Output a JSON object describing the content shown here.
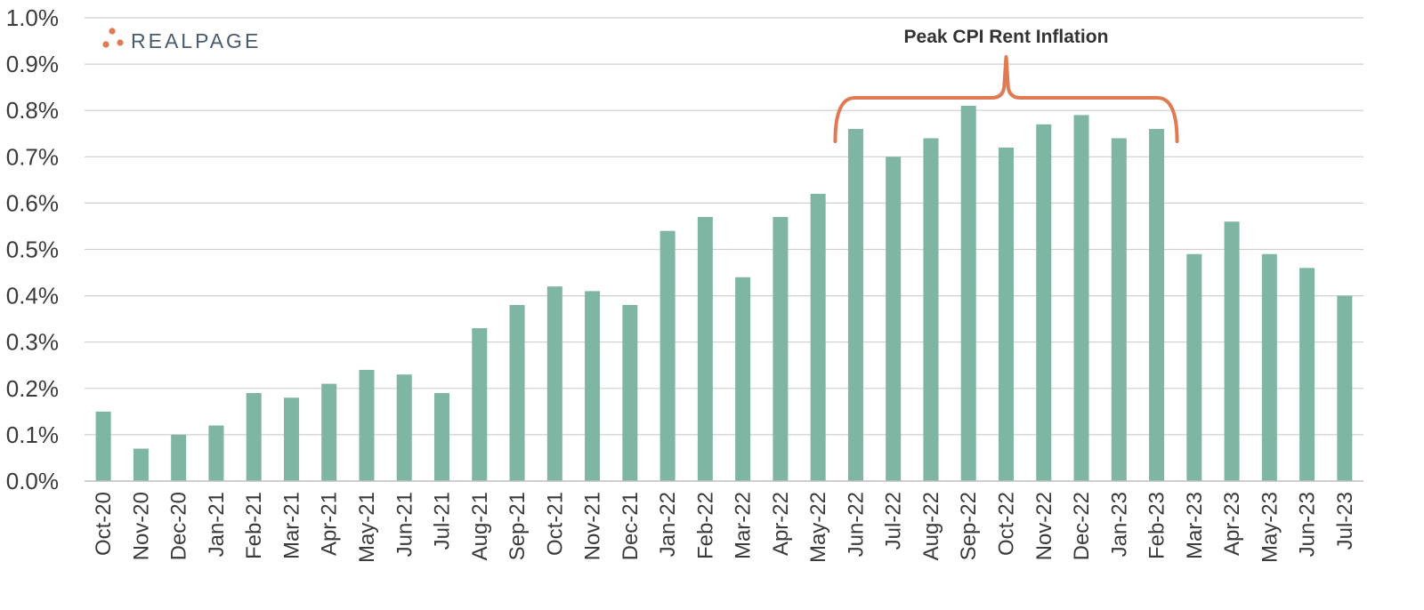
{
  "logo": {
    "text": "REALPAGE",
    "dot_color": "#e07a52",
    "text_color": "#4a5a6a"
  },
  "annotation": {
    "text": "Peak CPI Rent Inflation",
    "start_category": "Jun-22",
    "end_category": "Feb-23",
    "color": "#e07a52"
  },
  "chart_data": {
    "type": "bar",
    "title": "",
    "xlabel": "",
    "ylabel": "",
    "ylim": [
      0,
      1.0
    ],
    "y_unit": "%",
    "y_ticks": [
      "0.0%",
      "0.1%",
      "0.2%",
      "0.3%",
      "0.4%",
      "0.5%",
      "0.6%",
      "0.7%",
      "0.8%",
      "0.9%",
      "1.0%"
    ],
    "grid": true,
    "bar_color": "#7fb5a3",
    "categories": [
      "Oct-20",
      "Nov-20",
      "Dec-20",
      "Jan-21",
      "Feb-21",
      "Mar-21",
      "Apr-21",
      "May-21",
      "Jun-21",
      "Jul-21",
      "Aug-21",
      "Sep-21",
      "Oct-21",
      "Nov-21",
      "Dec-21",
      "Jan-22",
      "Feb-22",
      "Mar-22",
      "Apr-22",
      "May-22",
      "Jun-22",
      "Jul-22",
      "Aug-22",
      "Sep-22",
      "Oct-22",
      "Nov-22",
      "Dec-22",
      "Jan-23",
      "Feb-23",
      "Mar-23",
      "Apr-23",
      "May-23",
      "Jun-23",
      "Jul-23"
    ],
    "values": [
      0.15,
      0.07,
      0.1,
      0.12,
      0.19,
      0.18,
      0.21,
      0.24,
      0.23,
      0.19,
      0.33,
      0.38,
      0.42,
      0.41,
      0.38,
      0.54,
      0.57,
      0.44,
      0.57,
      0.62,
      0.76,
      0.7,
      0.74,
      0.81,
      0.72,
      0.77,
      0.79,
      0.74,
      0.76,
      0.49,
      0.56,
      0.49,
      0.46,
      0.4
    ]
  }
}
